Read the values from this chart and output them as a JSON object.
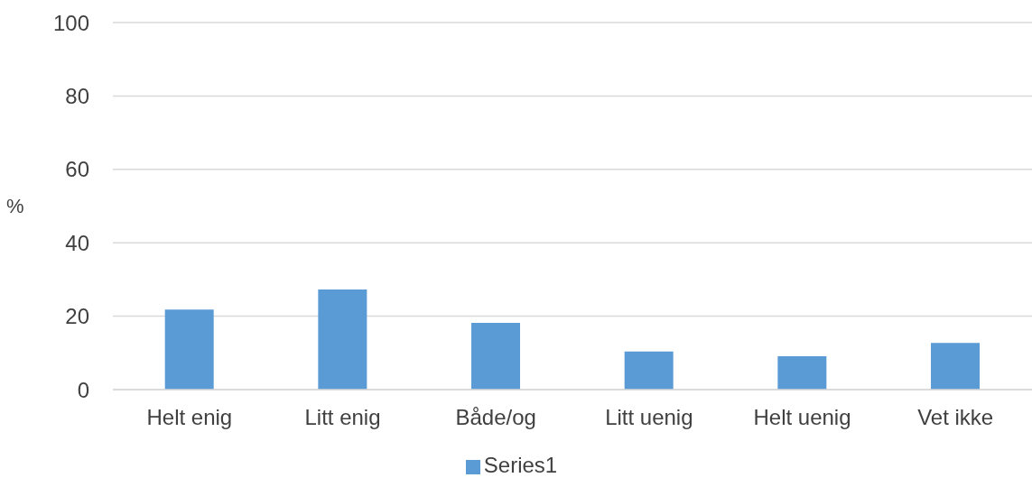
{
  "chart_data": {
    "type": "bar",
    "ylabel": "%",
    "categories": [
      "Helt enig",
      "Litt enig",
      "Både/og",
      "Litt uenig",
      "Helt uenig",
      "Vet ikke"
    ],
    "series": [
      {
        "name": "Series1",
        "color": "#5b9bd5",
        "values": [
          21.8,
          27.3,
          18.2,
          10.4,
          9.1,
          12.7
        ]
      }
    ],
    "ylim": [
      0,
      100
    ],
    "yticks": [
      0,
      20,
      40,
      60,
      80,
      100
    ],
    "grid": "y",
    "legend": "bottom"
  }
}
